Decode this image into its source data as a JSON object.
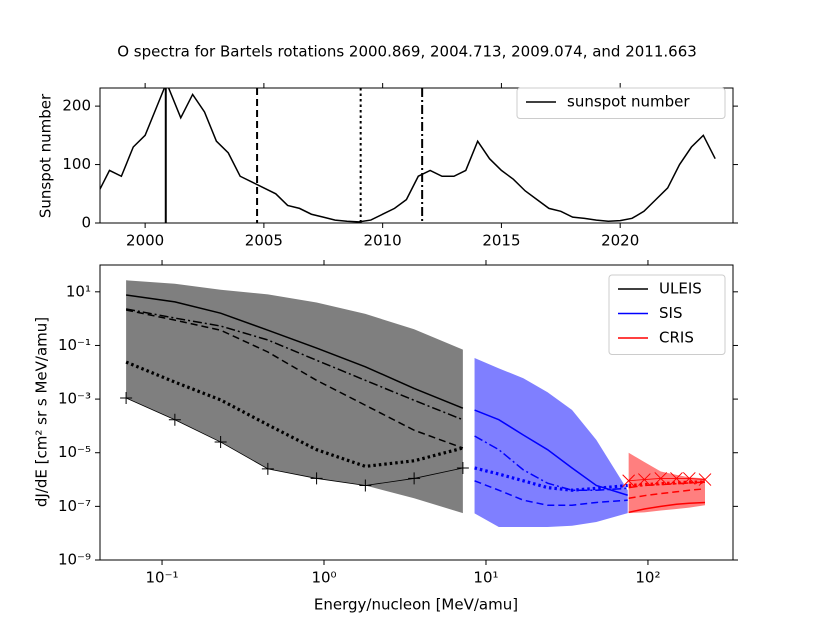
{
  "chart_data": [
    {
      "type": "line",
      "title": "O spectra for Bartels rotations 2000.869, 2004.713, 2009.074, and 2011.663",
      "ylabel": "Sunspot number",
      "legend": "upper right",
      "x": [
        1998.0,
        1998.5,
        1999.0,
        1999.5,
        2000.0,
        2000.5,
        2000.9,
        2001.5,
        2002.0,
        2002.5,
        2003.0,
        2003.5,
        2004.0,
        2004.5,
        2005.0,
        2005.5,
        2006.0,
        2006.5,
        2007.0,
        2007.5,
        2008.0,
        2008.5,
        2009.0,
        2009.5,
        2010.0,
        2010.5,
        2011.0,
        2011.5,
        2012.0,
        2012.5,
        2013.0,
        2013.5,
        2014.0,
        2014.5,
        2015.0,
        2015.5,
        2016.0,
        2016.5,
        2017.0,
        2017.5,
        2018.0,
        2018.5,
        2019.0,
        2019.5,
        2020.0,
        2020.5,
        2021.0,
        2021.5,
        2022.0,
        2022.5,
        2023.0,
        2023.5,
        2024.0
      ],
      "series": [
        {
          "name": "sunspot number",
          "color": "#000000",
          "values": [
            50,
            90,
            80,
            130,
            150,
            200,
            240,
            180,
            220,
            190,
            140,
            120,
            80,
            70,
            60,
            50,
            30,
            25,
            15,
            10,
            5,
            3,
            2,
            5,
            15,
            25,
            40,
            80,
            90,
            80,
            80,
            90,
            140,
            110,
            90,
            75,
            55,
            40,
            25,
            20,
            10,
            8,
            5,
            3,
            4,
            8,
            20,
            40,
            60,
            100,
            130,
            150,
            110
          ]
        }
      ],
      "rotations": [
        2000.869,
        2004.713,
        2009.074,
        2011.663
      ],
      "linestyles": [
        "solid",
        "dashed",
        "dotted",
        "dashdot"
      ],
      "xlim": [
        1998.1,
        2024.75
      ],
      "ylim": [
        0,
        231
      ],
      "xticks": [
        2000,
        2005,
        2010,
        2015,
        2020
      ],
      "yticks": [
        0,
        100,
        200
      ]
    },
    {
      "type": "line",
      "xlabel": "Energy/nucleon [MeV/amu]",
      "ylabel": "dJ/dE [cm² sr s MeV/amu]",
      "xscale": "log",
      "yscale": "log",
      "legend": "upper right",
      "linestyles": [
        "solid",
        "dashed",
        "dotted",
        "dashdot"
      ],
      "band_opacity": 0.5,
      "xlim": [
        0.0414,
        335
      ],
      "ylim": [
        1e-09,
        100
      ],
      "xticks": [
        {
          "value": 0.1,
          "label": "10⁻¹"
        },
        {
          "value": 1,
          "label": "10⁰"
        },
        {
          "value": 10,
          "label": "10¹"
        },
        {
          "value": 100,
          "label": "10²"
        }
      ],
      "yticks": [
        {
          "value": 1e-09,
          "label": "10⁻⁹"
        },
        {
          "value": 1e-07,
          "label": "10⁻⁷"
        },
        {
          "value": 1e-05,
          "label": "10⁻⁵"
        },
        {
          "value": 0.001,
          "label": "10⁻³"
        },
        {
          "value": 0.1,
          "label": "10⁻¹"
        },
        {
          "value": 10,
          "label": "10¹"
        }
      ],
      "series": [
        {
          "name": "ULEIS",
          "color": "#000000",
          "x": [
            0.06,
            0.12,
            0.23,
            0.45,
            0.9,
            1.8,
            3.6,
            7.2
          ],
          "band_upper": [
            27,
            20,
            12,
            8,
            4,
            1.5,
            0.4,
            0.07
          ],
          "band_lower": [
            0.0011,
            0.00017,
            2.5e-05,
            2.5e-06,
            1.1e-06,
            6e-07,
            2e-07,
            5.6e-08
          ],
          "lines": [
            [
              7.6,
              4.2,
              1.6,
              0.37,
              0.08,
              0.016,
              0.0025,
              0.00046
            ],
            [
              2.1,
              0.88,
              0.37,
              0.057,
              0.005,
              0.00059,
              6.9e-05,
              1.5e-05
            ],
            [
              0.024,
              0.0043,
              0.00093,
              0.00011,
              1.3e-05,
              3.1e-06,
              5e-06,
              1.5e-05
            ],
            [
              2.3,
              1.05,
              0.53,
              0.16,
              0.028,
              0.005,
              0.0009,
              0.00017
            ]
          ],
          "marker": "+",
          "marker_values": [
            0.0011,
            0.00017,
            2.5e-05,
            2.5e-06,
            1.1e-06,
            6e-07,
            1.1e-06,
            2.7e-06
          ]
        },
        {
          "name": "SIS",
          "color": "#0000ff",
          "x": [
            8.5,
            12,
            17,
            24,
            34,
            48,
            75
          ],
          "band_upper": [
            0.034,
            0.014,
            0.006,
            0.0018,
            0.00039,
            3e-05,
            4e-07
          ],
          "band_lower": [
            5.5e-08,
            1.7e-08,
            1.7e-08,
            1.7e-08,
            1.9e-08,
            2.6e-08,
            5.6e-08
          ],
          "lines": [
            [
              0.00039,
              0.00017,
              4.6e-05,
              1.3e-05,
              2.7e-06,
              6e-07,
              2.6e-07
            ],
            [
              9e-07,
              4e-07,
              1.7e-07,
              1.1e-07,
              1.1e-07,
              1.4e-07,
              1.7e-07
            ],
            [
              2.7e-06,
              1.6e-06,
              9e-07,
              5e-07,
              4e-07,
              4.7e-07,
              6e-07
            ],
            [
              4.2e-05,
              1.3e-05,
              2.3e-06,
              7.3e-07,
              4e-07,
              4e-07,
              4.7e-07
            ]
          ]
        },
        {
          "name": "CRIS",
          "color": "#ff0000",
          "x": [
            76,
            95,
            120,
            150,
            180,
            225
          ],
          "band_upper": [
            1e-05,
            4.5e-06,
            2e-06,
            1.5e-06,
            1.2e-06,
            1.1e-06
          ],
          "band_lower": [
            5.6e-08,
            6e-08,
            7e-08,
            8e-08,
            9e-08,
            1.1e-07
          ],
          "lines": [
            [
              6e-08,
              8e-08,
              1e-07,
              1.2e-07,
              1.3e-07,
              1.4e-07
            ],
            [
              2e-07,
              2.5e-07,
              3e-07,
              3.5e-07,
              4e-07,
              4.5e-07
            ],
            [
              6e-07,
              6.5e-07,
              7e-07,
              7.5e-07,
              8e-07,
              8e-07
            ],
            [
              5e-07,
              6e-07,
              6.5e-07,
              7e-07,
              7.5e-07,
              8e-07
            ]
          ],
          "marker": "x",
          "marker_values": [
            9e-07,
            1e-06,
            1.1e-06,
            1.1e-06,
            1.1e-06,
            1e-06
          ]
        }
      ]
    }
  ]
}
